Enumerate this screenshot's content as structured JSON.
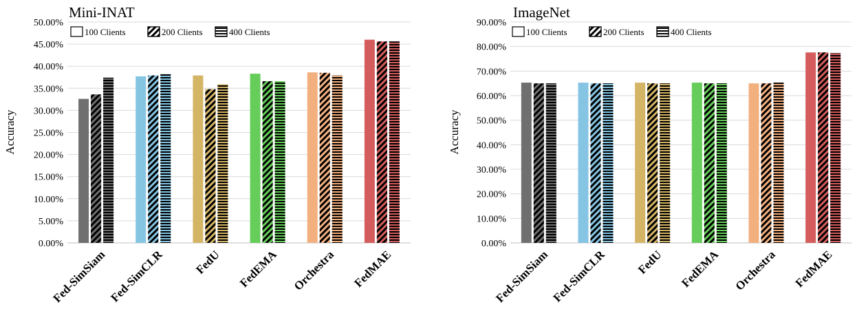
{
  "chart_data": [
    {
      "type": "bar",
      "title": "Mini-INAT",
      "ylabel": "Accuracy",
      "xlabel": "",
      "ylim": [
        0,
        50
      ],
      "yticks": [
        "0.00%",
        "5.00%",
        "10.00%",
        "15.00%",
        "20.00%",
        "25.00%",
        "30.00%",
        "35.00%",
        "40.00%",
        "45.00%",
        "50.00%"
      ],
      "categories": [
        "Fed-SimSiam",
        "Fed-SimCLR",
        "FedU",
        "FedEMA",
        "Orchestra",
        "FedMAE"
      ],
      "series": [
        {
          "name": "100 Clients",
          "values": [
            32.6,
            37.7,
            37.9,
            38.3,
            38.6,
            46.0
          ]
        },
        {
          "name": "200 Clients",
          "values": [
            33.6,
            37.9,
            34.8,
            36.6,
            38.5,
            45.6
          ]
        },
        {
          "name": "400 Clients",
          "values": [
            37.4,
            38.2,
            35.9,
            36.6,
            37.9,
            45.6
          ]
        }
      ],
      "legend_position": "top-left",
      "grid": true,
      "colors": [
        "#6f6f6f",
        "#85c5e3",
        "#d4b566",
        "#66cd5a",
        "#f3b07f",
        "#d45c5c"
      ]
    },
    {
      "type": "bar",
      "title": "ImageNet",
      "ylabel": "Accuracy",
      "xlabel": "",
      "ylim": [
        0,
        90
      ],
      "yticks": [
        "0.00%",
        "10.00%",
        "20.00%",
        "30.00%",
        "40.00%",
        "50.00%",
        "60.00%",
        "70.00%",
        "80.00%",
        "90.00%"
      ],
      "categories": [
        "Fed-SimSiam",
        "Fed-SimCLR",
        "FedU",
        "FedEMA",
        "Orchestra",
        "FedMAE"
      ],
      "series": [
        {
          "name": "100 Clients",
          "values": [
            65.3,
            65.3,
            65.3,
            65.3,
            65.0,
            77.6
          ]
        },
        {
          "name": "200 Clients",
          "values": [
            65.0,
            65.0,
            65.0,
            65.0,
            65.0,
            77.6
          ]
        },
        {
          "name": "400 Clients",
          "values": [
            65.0,
            65.0,
            65.0,
            65.0,
            65.3,
            77.3
          ]
        }
      ],
      "legend_position": "top-left",
      "grid": true,
      "colors": [
        "#6f6f6f",
        "#85c5e3",
        "#d4b566",
        "#66cd5a",
        "#f3b07f",
        "#d45c5c"
      ]
    }
  ]
}
